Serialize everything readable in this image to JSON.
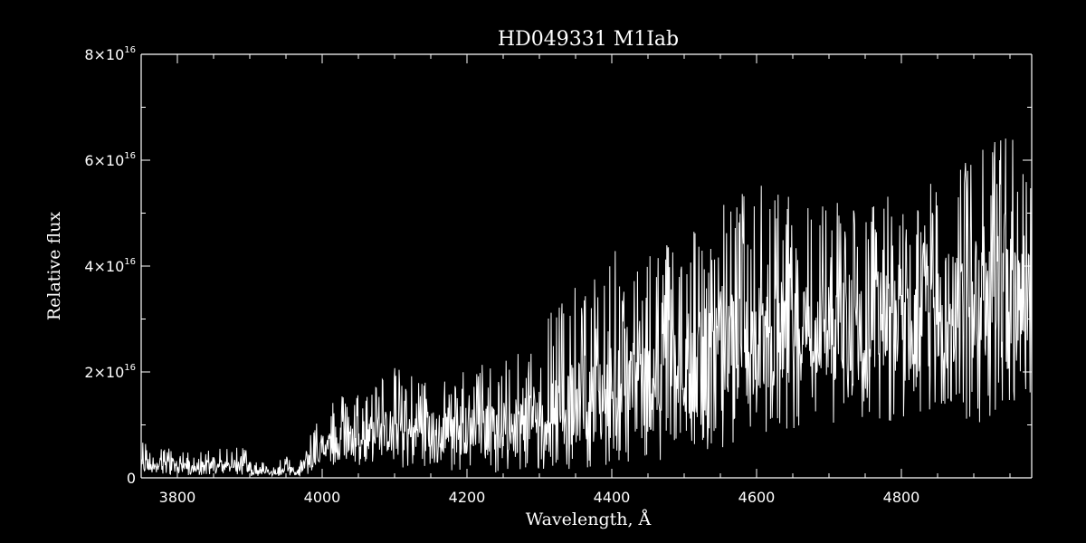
{
  "chart_data": {
    "type": "line",
    "title": "HD049331  M1Iab",
    "xlabel": "Wavelength, Å",
    "ylabel": "Relative flux",
    "xlim": [
      3750,
      4980
    ],
    "ylim": [
      0,
      8e+16
    ],
    "x_ticks": [
      {
        "value": 3800,
        "label": "3800"
      },
      {
        "value": 4000,
        "label": "4000"
      },
      {
        "value": 4200,
        "label": "4200"
      },
      {
        "value": 4400,
        "label": "4400"
      },
      {
        "value": 4600,
        "label": "4600"
      },
      {
        "value": 4800,
        "label": "4800"
      }
    ],
    "y_ticks": [
      {
        "value": 0,
        "mantissa": "0",
        "exponent": ""
      },
      {
        "value": 2e+16,
        "mantissa": "2×10",
        "exponent": "16"
      },
      {
        "value": 4e+16,
        "mantissa": "4×10",
        "exponent": "16"
      },
      {
        "value": 6e+16,
        "mantissa": "6×10",
        "exponent": "16"
      },
      {
        "value": 8e+16,
        "mantissa": "8×10",
        "exponent": "16"
      }
    ],
    "x_minor_step": 50,
    "y_minor_step": 1e+16,
    "grid": false,
    "legend": "none",
    "line_color": "#ffffff",
    "background": "#000000",
    "series": [
      {
        "x": [
          3750,
          3770,
          3790,
          3810,
          3830,
          3850,
          3870,
          3890,
          3910,
          3930,
          3950,
          3965,
          3980,
          4000,
          4030,
          4060,
          4100,
          4150,
          4200,
          4250,
          4300,
          4350,
          4400,
          4450,
          4500,
          4550,
          4600,
          4650,
          4700,
          4750,
          4800,
          4850,
          4900,
          4950,
          4980
        ],
        "y": [
          2000000000000000.0,
          3000000000000000.0,
          2500000000000000.0,
          2000000000000000.0,
          2000000000000000.0,
          2500000000000000.0,
          2000000000000000.0,
          2500000000000000.0,
          1500000000000000.0,
          1000000000000000.0,
          2000000000000000.0,
          1000000000000000.0,
          3500000000000000.0,
          5500000000000000.0,
          7000000000000000.0,
          8000000000000000.0,
          9000000000000000.0,
          9000000000000000.0,
          9000000000000000.0,
          9500000000000000.0,
          1.2e+16,
          1.4e+16,
          1.65e+16,
          1.8e+16,
          2e+16,
          2.3e+16,
          2.6e+16,
          2.8e+16,
          2.9e+16,
          3e+16,
          3.1e+16,
          3.2e+16,
          3.3e+16,
          3.4e+16,
          3.4e+16
        ],
        "upper": [
          7000000000000000.0,
          7500000000000000.0,
          5500000000000000.0,
          5000000000000000.0,
          5000000000000000.0,
          5500000000000000.0,
          5500000000000000.0,
          6500000000000000.0,
          3500000000000000.0,
          2500000000000000.0,
          4500000000000000.0,
          1500000000000000.0,
          8000000000000000.0,
          1.5e+16,
          1.6e+16,
          1.75e+16,
          2.1e+16,
          1.8e+16,
          2.1e+16,
          2.3e+16,
          3.3e+16,
          3.6e+16,
          4.3e+16,
          4.4e+16,
          4.8e+16,
          5.2e+16,
          5.6e+16,
          5.3e+16,
          5.4e+16,
          5.2e+16,
          5.4e+16,
          5.6e+16,
          6.2e+16,
          6.6e+16,
          5.5e+16
        ],
        "lower": [
          500000000000000.0,
          1000000000000000.0,
          500000000000000.0,
          500000000000000.0,
          500000000000000.0,
          500000000000000.0,
          500000000000000.0,
          500000000000000.0,
          200000000000000.0,
          200000000000000.0,
          500000000000000.0,
          200000000000000.0,
          500000000000000.0,
          2000000000000000.0,
          2000000000000000.0,
          2000000000000000.0,
          1500000000000000.0,
          1500000000000000.0,
          1000000000000000.0,
          1000000000000000.0,
          1000000000000000.0,
          1500000000000000.0,
          2000000000000000.0,
          3000000000000000.0,
          4000000000000000.0,
          5000000000000000.0,
          8000000000000000.0,
          9000000000000000.0,
          1e+16,
          1.1e+16,
          1e+16,
          1.1e+16,
          1e+16,
          1.2e+16,
          1.5e+16
        ]
      }
    ]
  }
}
